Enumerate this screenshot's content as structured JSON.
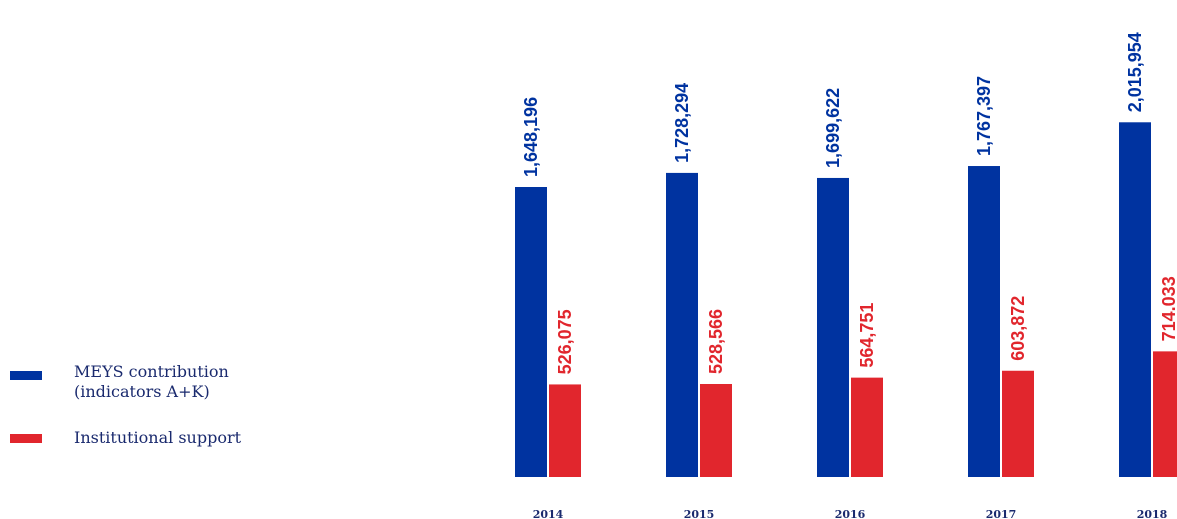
{
  "chart_data": {
    "type": "bar",
    "categories": [
      "2014",
      "2015",
      "2016",
      "2017",
      "2018"
    ],
    "series": [
      {
        "name": "MEYS contribution (indicators A+K)",
        "values": [
          1648196,
          1728294,
          1699622,
          1767397,
          2015954
        ],
        "labels": [
          "1,648,196",
          "1,728,294",
          "1,699,622",
          "1,767,397",
          "2,015,954"
        ],
        "color": "#0033a0"
      },
      {
        "name": "Institutional support",
        "values": [
          526075,
          528566,
          564751,
          603872,
          714033
        ],
        "labels": [
          "526,075",
          "528,566",
          "564,751",
          "603,872",
          "714.033"
        ],
        "color": "#e1262d"
      }
    ],
    "title": "",
    "xlabel": "",
    "ylabel": "",
    "ylim": [
      0,
      2400000
    ],
    "grid": false,
    "legend": {
      "position": "left",
      "items": [
        {
          "label": "MEYS contribution\n(indicators A+K)",
          "color": "#0033a0"
        },
        {
          "label": "Institutional support",
          "color": "#e1262d"
        }
      ]
    }
  }
}
